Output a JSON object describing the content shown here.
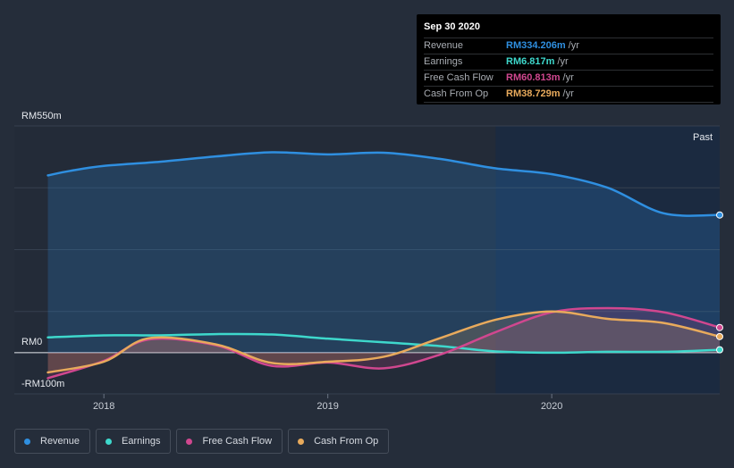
{
  "chart_data": {
    "type": "line",
    "currency_unit": "RM",
    "y_axis_labels": {
      "top": "RM550m",
      "zero": "RM0",
      "bottom": "-RM100m"
    },
    "ylim": [
      -100,
      550
    ],
    "x_ticks": [
      {
        "label": "2018",
        "x": 2018.0
      },
      {
        "label": "2019",
        "x": 2019.0
      },
      {
        "label": "2020",
        "x": 2020.0
      }
    ],
    "xlim": [
      2017.6,
      2020.75
    ],
    "past_start": 2019.75,
    "past_label": "Past",
    "series": [
      {
        "name": "Revenue",
        "color": "#2f8fe0",
        "fill": true,
        "points": [
          [
            2017.75,
            430
          ],
          [
            2017.85,
            441
          ],
          [
            2018.0,
            453
          ],
          [
            2018.25,
            463
          ],
          [
            2018.5,
            476
          ],
          [
            2018.75,
            486
          ],
          [
            2019.0,
            481
          ],
          [
            2019.25,
            485
          ],
          [
            2019.5,
            470
          ],
          [
            2019.75,
            447
          ],
          [
            2020.0,
            433
          ],
          [
            2020.25,
            400
          ],
          [
            2020.5,
            338
          ],
          [
            2020.75,
            334
          ]
        ]
      },
      {
        "name": "Earnings",
        "color": "#3ed8cc",
        "fill": false,
        "points": [
          [
            2017.75,
            37
          ],
          [
            2018.0,
            42
          ],
          [
            2018.25,
            42
          ],
          [
            2018.5,
            45
          ],
          [
            2018.75,
            44
          ],
          [
            2019.0,
            34
          ],
          [
            2019.25,
            25
          ],
          [
            2019.5,
            16
          ],
          [
            2019.75,
            3
          ],
          [
            2020.0,
            0
          ],
          [
            2020.25,
            2
          ],
          [
            2020.5,
            2
          ],
          [
            2020.75,
            7
          ]
        ]
      },
      {
        "name": "Free Cash Flow",
        "color": "#d0478f",
        "fill": true,
        "points": [
          [
            2017.75,
            -62
          ],
          [
            2018.0,
            -20
          ],
          [
            2018.2,
            32
          ],
          [
            2018.5,
            18
          ],
          [
            2018.75,
            -32
          ],
          [
            2019.0,
            -24
          ],
          [
            2019.25,
            -38
          ],
          [
            2019.5,
            -5
          ],
          [
            2019.75,
            50
          ],
          [
            2020.0,
            98
          ],
          [
            2020.25,
            108
          ],
          [
            2020.5,
            98
          ],
          [
            2020.75,
            61
          ]
        ]
      },
      {
        "name": "Cash From Op",
        "color": "#e8aa5c",
        "fill": true,
        "points": [
          [
            2017.75,
            -48
          ],
          [
            2018.0,
            -22
          ],
          [
            2018.2,
            35
          ],
          [
            2018.5,
            20
          ],
          [
            2018.75,
            -25
          ],
          [
            2019.0,
            -22
          ],
          [
            2019.25,
            -10
          ],
          [
            2019.5,
            35
          ],
          [
            2019.75,
            80
          ],
          [
            2020.0,
            100
          ],
          [
            2020.25,
            82
          ],
          [
            2020.5,
            72
          ],
          [
            2020.75,
            39
          ]
        ]
      }
    ]
  },
  "tooltip": {
    "date": "Sep 30 2020",
    "rows": [
      {
        "name": "Revenue",
        "value": "RM334.206m",
        "unit": "/yr",
        "color": "#2f8fe0"
      },
      {
        "name": "Earnings",
        "value": "RM6.817m",
        "unit": "/yr",
        "color": "#3ed8cc"
      },
      {
        "name": "Free Cash Flow",
        "value": "RM60.813m",
        "unit": "/yr",
        "color": "#d0478f"
      },
      {
        "name": "Cash From Op",
        "value": "RM38.729m",
        "unit": "/yr",
        "color": "#e8aa5c"
      }
    ]
  },
  "legend": [
    {
      "label": "Revenue",
      "color": "#2f8fe0"
    },
    {
      "label": "Earnings",
      "color": "#3ed8cc"
    },
    {
      "label": "Free Cash Flow",
      "color": "#d0478f"
    },
    {
      "label": "Cash From Op",
      "color": "#e8aa5c"
    }
  ]
}
